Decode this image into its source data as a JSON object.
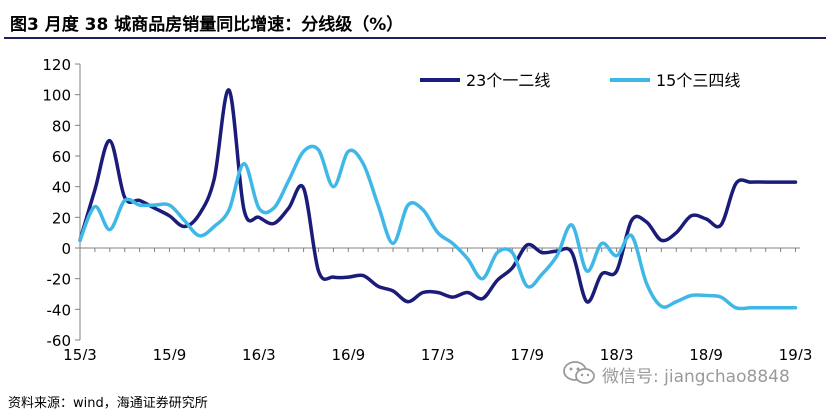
{
  "title": "图3   月度 38 城商品房销量同比增速：分线级（%）",
  "source": "资料来源：wind，海通证券研究所",
  "watermark": {
    "text": "微信号: jiangchao8848",
    "icon": "wechat-logo-icon"
  },
  "colors": {
    "series1": "#1b1b7a",
    "series2": "#3fb8e8",
    "title_rule": "#1f1f5a"
  },
  "chart_data": {
    "type": "line",
    "title": "",
    "xlabel": "",
    "ylabel": "",
    "ylim": [
      -60,
      120
    ],
    "yticks": [
      -60,
      -40,
      -20,
      0,
      20,
      40,
      60,
      80,
      100,
      120
    ],
    "x": [
      "15/3",
      "15/4",
      "15/5",
      "15/6",
      "15/7",
      "15/8",
      "15/9",
      "15/10",
      "15/11",
      "15/12",
      "16/1",
      "16/2",
      "16/3",
      "16/4",
      "16/5",
      "16/6",
      "16/7",
      "16/8",
      "16/9",
      "16/10",
      "16/11",
      "16/12",
      "17/1",
      "17/2",
      "17/3",
      "17/4",
      "17/5",
      "17/6",
      "17/7",
      "17/8",
      "17/9",
      "17/10",
      "17/11",
      "17/12",
      "18/1",
      "18/2",
      "18/3",
      "18/4",
      "18/5",
      "18/6",
      "18/7",
      "18/8",
      "18/9",
      "18/10",
      "18/11",
      "18/12",
      "19/1",
      "19/2",
      "19/3"
    ],
    "xtick_labels": [
      "15/3",
      "15/9",
      "16/3",
      "16/9",
      "17/3",
      "17/9",
      "18/3",
      "18/9",
      "19/3"
    ],
    "legend_position": "top-right",
    "grid": false,
    "series": [
      {
        "name": "23个一二线",
        "values": [
          5,
          38,
          70,
          33,
          31,
          26,
          21,
          14,
          22,
          45,
          103,
          25,
          20,
          16,
          26,
          39,
          -15,
          -19,
          -19,
          -18,
          -25,
          -28,
          -35,
          -29,
          -29,
          -32,
          -29,
          -33,
          -21,
          -13,
          2,
          -3,
          -2,
          -3,
          -35,
          -17,
          -15,
          18,
          17,
          5,
          10,
          21,
          19,
          15,
          42,
          43,
          43,
          43,
          43
        ],
        "color": "#1b1b7a"
      },
      {
        "name": "15个三四线",
        "values": [
          5,
          27,
          12,
          31,
          28,
          28,
          28,
          18,
          8,
          14,
          25,
          55,
          26,
          26,
          44,
          63,
          64,
          40,
          63,
          55,
          28,
          3,
          28,
          25,
          10,
          3,
          -7,
          -20,
          -3,
          -3,
          -25,
          -17,
          -5,
          15,
          -15,
          3,
          -5,
          8,
          -23,
          -38,
          -35,
          -31,
          -31,
          -32,
          -39,
          -39,
          -39,
          -39,
          -39
        ],
        "color": "#3fb8e8"
      }
    ]
  }
}
